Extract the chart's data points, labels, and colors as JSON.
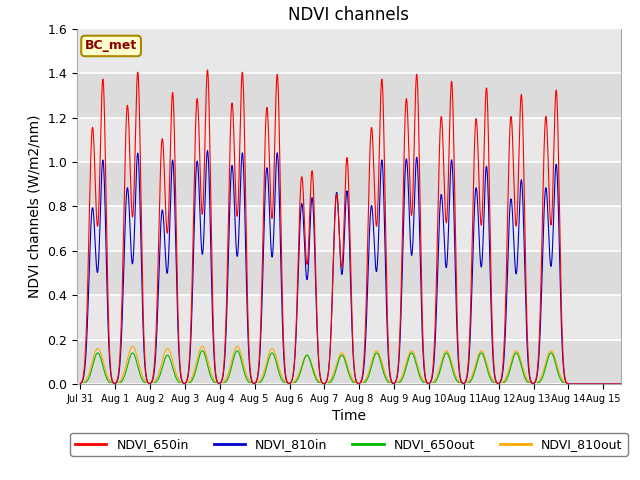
{
  "title": "NDVI channels",
  "xlabel": "Time",
  "ylabel": "NDVI channels (W/m2/nm)",
  "ylim": [
    0,
    1.6
  ],
  "xlim_days": [
    -0.1,
    15.5
  ],
  "x_tick_labels": [
    "Jul 31",
    "Aug 1",
    "Aug 2",
    "Aug 3",
    "Aug 4",
    "Aug 5",
    "Aug 6",
    "Aug 7",
    "Aug 8",
    "Aug 9",
    "Aug 10",
    "Aug 11",
    "Aug 12",
    "Aug 13",
    "Aug 14",
    "Aug 15"
  ],
  "x_tick_positions": [
    0,
    1,
    2,
    3,
    4,
    5,
    6,
    7,
    8,
    9,
    10,
    11,
    12,
    13,
    14,
    15
  ],
  "background_color": "#e8e8e8",
  "band_colors": [
    "#e0e0e0",
    "#d0d0d0"
  ],
  "grid_color": "#c8c8c8",
  "line_colors": {
    "NDVI_650in": "#ff0000",
    "NDVI_810in": "#0000cc",
    "NDVI_650out": "#00bb00",
    "NDVI_810out": "#ffaa00"
  },
  "peak_650in_a": [
    1.15,
    1.25,
    1.1,
    1.28,
    1.26,
    1.24,
    0.93,
    0.85,
    1.15,
    1.28,
    1.2,
    1.19,
    1.2,
    1.2
  ],
  "peak_650in_b": [
    1.36,
    1.39,
    1.3,
    1.4,
    1.39,
    1.38,
    0.95,
    1.01,
    1.36,
    1.38,
    1.35,
    1.32,
    1.29,
    1.31
  ],
  "peak_810in_a": [
    0.79,
    0.88,
    0.78,
    1.0,
    0.98,
    0.97,
    0.81,
    0.86,
    0.8,
    1.01,
    0.85,
    0.88,
    0.83,
    0.88
  ],
  "peak_810in_b": [
    1.0,
    1.03,
    1.0,
    1.04,
    1.03,
    1.03,
    0.83,
    0.86,
    1.0,
    1.01,
    1.0,
    0.97,
    0.91,
    0.98
  ],
  "peak_650out": [
    0.14,
    0.14,
    0.13,
    0.15,
    0.15,
    0.14,
    0.13,
    0.13,
    0.14,
    0.14,
    0.14,
    0.14,
    0.14,
    0.14
  ],
  "peak_810out": [
    0.16,
    0.17,
    0.16,
    0.17,
    0.17,
    0.16,
    0.13,
    0.14,
    0.15,
    0.15,
    0.15,
    0.15,
    0.15,
    0.15
  ],
  "bc_met_label": "BC_met",
  "bc_met_color": "#ffffcc",
  "bc_met_border": "#aa8800",
  "legend_entries": [
    "NDVI_650in",
    "NDVI_810in",
    "NDVI_650out",
    "NDVI_810out"
  ]
}
